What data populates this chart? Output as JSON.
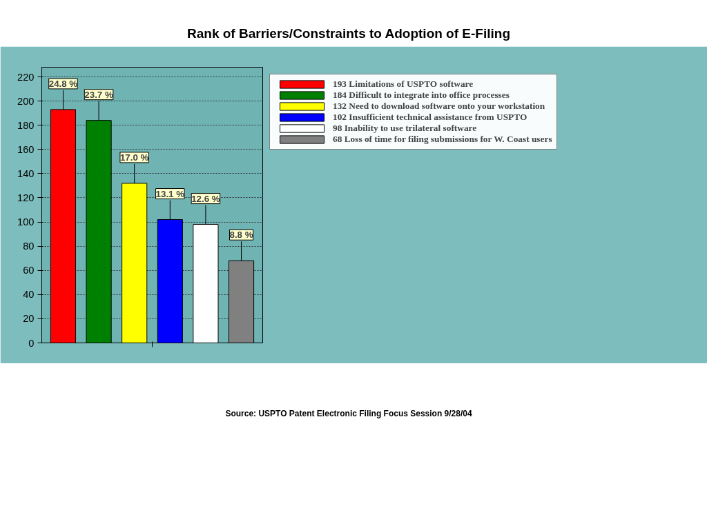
{
  "chart_data": {
    "type": "bar",
    "title": "Rank of Barriers/Constraints to Adoption of E-Filing",
    "categories": [
      null
    ],
    "series": [
      {
        "name": "193 Limitations of USPTO software",
        "color": "#ff0000",
        "values": [
          193
        ]
      },
      {
        "name": "184 Difficult to integrate into office processes",
        "color": "#008000",
        "values": [
          184
        ]
      },
      {
        "name": "132 Need to download software onto your workstation",
        "color": "#ffff00",
        "values": [
          132
        ]
      },
      {
        "name": "102 Insufficient technical assistance from USPTO",
        "color": "#0000ff",
        "values": [
          102
        ]
      },
      {
        "name": "98 Inability to use trilateral software",
        "color": "#ffffff",
        "values": [
          98
        ]
      },
      {
        "name": "68 Loss of time for filing submissions for W. Coast users",
        "color": "#808080",
        "values": [
          68
        ]
      }
    ],
    "ylim": [
      0,
      228
    ],
    "yticks": [
      0,
      20,
      40,
      60,
      80,
      100,
      120,
      140,
      160,
      180,
      200,
      220
    ],
    "grid": "y",
    "legend": "right",
    "tick_labels": "y",
    "annotations": [
      {
        "text": "24.8 %",
        "y": 193
      },
      {
        "text": "23.7 %",
        "y": 184
      },
      {
        "text": "17.0 %",
        "y": 132
      },
      {
        "text": "13.1 %",
        "y": 102
      },
      {
        "text": "12.6 %",
        "y": 98
      },
      {
        "text": "8.8 %",
        "y": 68
      },
      "Source: USPTO Patent Electronic Filing Focus Session 9/28/04"
    ]
  }
}
